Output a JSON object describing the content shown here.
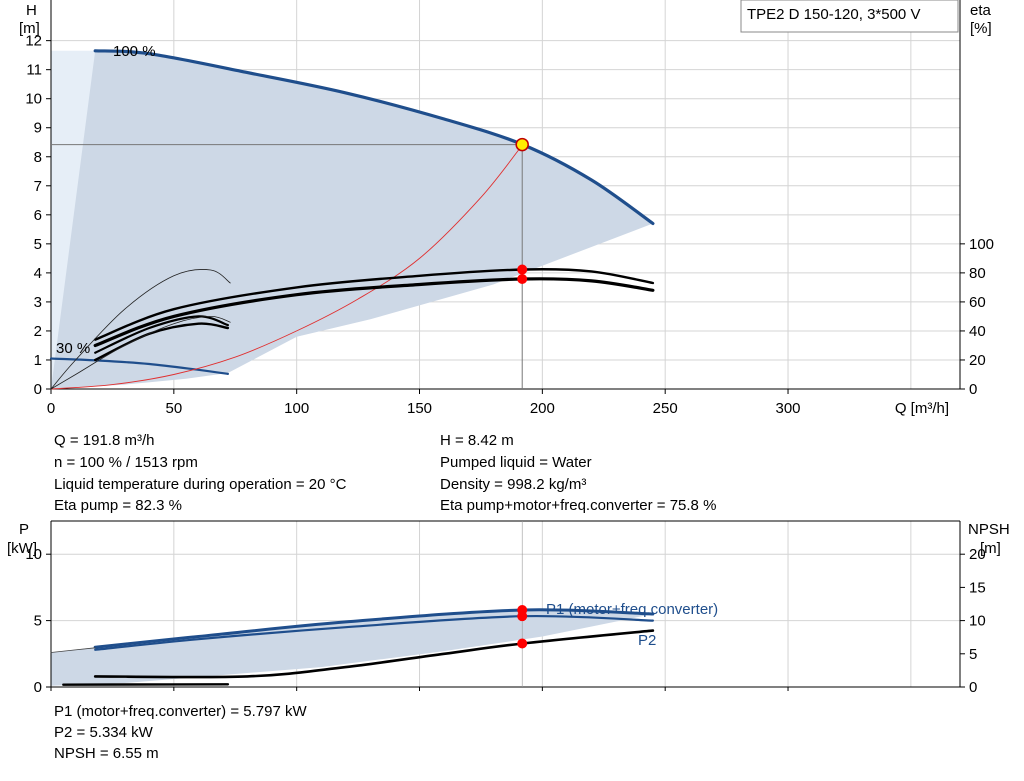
{
  "chart_data": [
    {
      "type": "line",
      "name": "head-efficiency",
      "title_box": "TPE2 D 150-120, 3*500 V",
      "xlabel": "Q [m³/h]",
      "ylabel_left": [
        "H",
        "[m]"
      ],
      "ylabel_right": [
        "eta",
        "[%]"
      ],
      "xlim": [
        0,
        370
      ],
      "ylim_left": [
        0,
        13.4
      ],
      "ylim_right_scale_per_head_m": 20,
      "x_ticks": [
        0,
        50,
        100,
        150,
        200,
        250,
        300
      ],
      "y_ticks_left": [
        0,
        1,
        2,
        3,
        4,
        5,
        6,
        7,
        8,
        9,
        10,
        11,
        12
      ],
      "y_ticks_right": [
        0,
        20,
        40,
        60,
        80,
        100
      ],
      "grid": true,
      "annotations": {
        "max_speed": "100 %",
        "min_speed": "30 %"
      },
      "colors": {
        "head": "#1f4e8c",
        "region": "#cdd8e6",
        "region_light": "#e6eef7",
        "system": "#e03030",
        "efficiency": "#000000",
        "operating_point": "#ff0000",
        "op_fill": "#ffee00"
      },
      "region_polygon": [
        [
          0,
          11.65
        ],
        [
          18,
          11.65
        ],
        [
          40,
          11.52
        ],
        [
          80,
          10.9
        ],
        [
          120,
          10.2
        ],
        [
          160,
          9.3
        ],
        [
          192,
          8.42
        ],
        [
          220,
          7.2
        ],
        [
          245,
          5.7
        ],
        [
          180,
          3.6
        ],
        [
          130,
          2.4
        ],
        [
          100,
          1.8
        ],
        [
          72,
          0.55
        ],
        [
          55,
          0.35
        ],
        [
          30,
          0.15
        ],
        [
          5,
          0.02
        ],
        [
          0,
          0
        ]
      ],
      "series": [
        {
          "role": "head-100",
          "x": [
            18,
            40,
            80,
            120,
            160,
            192,
            220,
            245
          ],
          "y": [
            11.65,
            11.55,
            10.9,
            10.2,
            9.3,
            8.42,
            7.2,
            5.7
          ]
        },
        {
          "role": "head-30",
          "x": [
            0,
            20,
            40,
            60,
            72
          ],
          "y": [
            1.05,
            0.98,
            0.86,
            0.66,
            0.52
          ]
        },
        {
          "role": "system",
          "x": [
            0,
            25,
            50,
            75,
            100,
            125,
            150,
            175,
            192
          ],
          "y": [
            0,
            0.15,
            0.5,
            1.1,
            2.0,
            3.1,
            4.5,
            6.6,
            8.42
          ]
        },
        {
          "role": "eta-pump-100",
          "x": [
            18,
            50,
            100,
            150,
            192,
            220,
            245
          ],
          "y": [
            34,
            55,
            70,
            78,
            82.3,
            81,
            73
          ]
        },
        {
          "role": "eta-total-100",
          "x": [
            18,
            50,
            100,
            150,
            192,
            220,
            245
          ],
          "y": [
            30,
            50,
            65,
            72,
            75.8,
            74.5,
            68
          ]
        },
        {
          "role": "eta-pump-30",
          "x": [
            18,
            40,
            60,
            72
          ],
          "y": [
            25,
            42,
            50,
            44
          ]
        },
        {
          "role": "eta-total-30",
          "x": [
            18,
            40,
            60,
            72
          ],
          "y": [
            20,
            38,
            45,
            42
          ]
        },
        {
          "role": "eta-thin-1",
          "x": [
            0,
            10,
            30,
            50,
            65,
            73
          ],
          "y": [
            0,
            20,
            55,
            78,
            82,
            73
          ]
        },
        {
          "role": "eta-thin-2",
          "x": [
            0,
            10,
            30,
            50,
            65,
            73
          ],
          "y": [
            0,
            10,
            30,
            45,
            50,
            46
          ]
        }
      ],
      "operating_point": {
        "q": 191.8,
        "h": 8.42,
        "eta_pump": 82.3,
        "eta_total": 75.8
      }
    },
    {
      "type": "line",
      "name": "power-npsh",
      "ylabel_left": [
        "P",
        "[kW]"
      ],
      "ylabel_right": [
        "NPSH",
        "[m]"
      ],
      "xlim": [
        0,
        370
      ],
      "ylim_left": [
        0,
        12.5
      ],
      "ylim_right": [
        0,
        25
      ],
      "y_ticks_left": [
        0,
        5,
        10
      ],
      "y_ticks_right": [
        0,
        5,
        10,
        15,
        20
      ],
      "grid": true,
      "region_polygon": [
        [
          0,
          2.6
        ],
        [
          18,
          3.0
        ],
        [
          60,
          3.8
        ],
        [
          120,
          4.9
        ],
        [
          192,
          5.8
        ],
        [
          245,
          5.5
        ],
        [
          200,
          3.8
        ],
        [
          160,
          2.7
        ],
        [
          110,
          1.5
        ],
        [
          70,
          0.9
        ],
        [
          30,
          0.3
        ],
        [
          0,
          0.1
        ]
      ],
      "series": [
        {
          "name": "P1 (motor+freq.converter)",
          "x": [
            18,
            60,
            120,
            192,
            245
          ],
          "y": [
            3.0,
            3.8,
            4.9,
            5.797,
            5.5
          ]
        },
        {
          "name": "P2",
          "x": [
            18,
            60,
            120,
            192,
            245
          ],
          "y": [
            2.8,
            3.6,
            4.5,
            5.334,
            5.0
          ]
        },
        {
          "role": "p-thin",
          "x": [
            0,
            18
          ],
          "y": [
            2.6,
            2.95
          ]
        },
        {
          "role": "npsh-100",
          "axis": "right",
          "x": [
            18,
            80,
            120,
            160,
            192,
            245
          ],
          "y": [
            1.6,
            1.6,
            3.0,
            5.0,
            6.55,
            8.5
          ]
        },
        {
          "role": "npsh-30",
          "axis": "right",
          "x": [
            5,
            30,
            72
          ],
          "y": [
            0.35,
            0.38,
            0.4
          ]
        }
      ],
      "operating_point": {
        "q": 191.8,
        "p1": 5.797,
        "p2": 5.334,
        "npsh": 6.55
      }
    }
  ],
  "info": {
    "left": [
      "Q = 191.8 m³/h",
      "n = 100 % / 1513 rpm",
      "Liquid temperature during operation = 20 °C",
      "Eta pump = 82.3 %"
    ],
    "right": [
      "H = 8.42 m",
      "Pumped liquid = Water",
      "Density = 998.2 kg/m³",
      "Eta pump+motor+freq.converter = 75.8 %"
    ],
    "bottom": [
      "P1 (motor+freq.converter) = 5.797 kW",
      "P2 = 5.334 kW",
      "NPSH = 6.55 m"
    ]
  }
}
